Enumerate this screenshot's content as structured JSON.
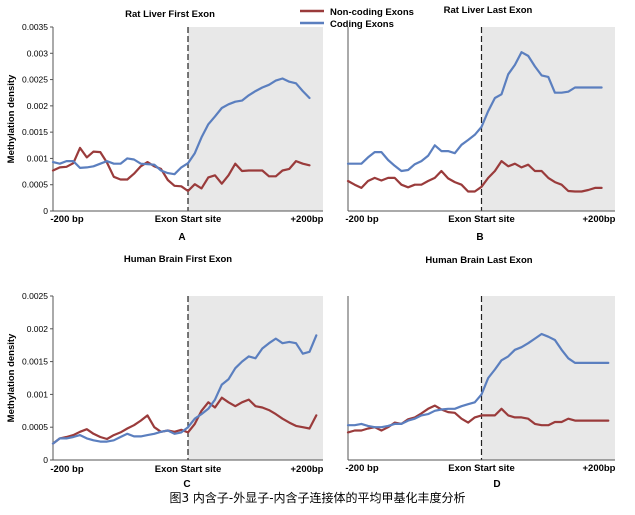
{
  "caption": "图3 内含子-外显子-内含子连接体的平均甲基化丰度分析",
  "legend": [
    {
      "label": "Non-coding Exons",
      "color": "#9a3b3b"
    },
    {
      "label": "Coding Exons",
      "color": "#5b7fbf"
    }
  ],
  "chart_data": [
    {
      "type": "line",
      "panel": "A",
      "title": "Rat Liver First Exon",
      "ylabel": "Methylation density",
      "xlabel": "",
      "x_tick_labels": [
        "-200 bp",
        "Exon Start site",
        "+200bp"
      ],
      "xlim": [
        -200,
        200
      ],
      "ylim": [
        0,
        0.0035
      ],
      "y_ticks": [
        "0",
        "0.0005",
        "0.001",
        "0.0015",
        "0.002",
        "0.0025",
        "0.003",
        "0.0035"
      ],
      "shaded_region": [
        0,
        200
      ],
      "vline_x": 0,
      "series": [
        {
          "name": "Non-coding Exons",
          "color": "#9a3b3b",
          "x": [
            -200,
            -190,
            -180,
            -170,
            -160,
            -150,
            -140,
            -130,
            -120,
            -110,
            -100,
            -90,
            -80,
            -70,
            -60,
            -50,
            -40,
            -30,
            -20,
            -10,
            0,
            10,
            20,
            30,
            40,
            50,
            60,
            70,
            80,
            90,
            100,
            110,
            120,
            130,
            140,
            150,
            160,
            170,
            180
          ],
          "values": [
            0.00077,
            0.00083,
            0.00084,
            0.00091,
            0.0012,
            0.00102,
            0.00113,
            0.00112,
            0.00092,
            0.00065,
            0.0006,
            0.0006,
            0.00071,
            0.00085,
            0.00093,
            0.00085,
            0.0008,
            0.00059,
            0.00048,
            0.00047,
            0.00038,
            0.00051,
            0.00043,
            0.00064,
            0.00068,
            0.00052,
            0.00068,
            0.0009,
            0.00076,
            0.00077,
            0.00077,
            0.00077,
            0.00066,
            0.00066,
            0.00077,
            0.0008,
            0.00095,
            0.0009,
            0.00087
          ]
        },
        {
          "name": "Coding Exons",
          "color": "#5b7fbf",
          "x": [
            -200,
            -190,
            -180,
            -170,
            -160,
            -150,
            -140,
            -130,
            -120,
            -110,
            -100,
            -90,
            -80,
            -70,
            -60,
            -50,
            -40,
            -30,
            -20,
            -10,
            0,
            10,
            20,
            30,
            40,
            50,
            60,
            70,
            80,
            90,
            100,
            110,
            120,
            130,
            140,
            150,
            160,
            170,
            180
          ],
          "values": [
            0.00093,
            0.0009,
            0.00095,
            0.00095,
            0.00082,
            0.00083,
            0.00085,
            0.0009,
            0.00095,
            0.0009,
            0.0009,
            0.001,
            0.00098,
            0.0009,
            0.00089,
            0.00088,
            0.00077,
            0.00072,
            0.0007,
            0.00083,
            0.00091,
            0.0011,
            0.0014,
            0.00165,
            0.0018,
            0.00196,
            0.00203,
            0.00208,
            0.0021,
            0.0022,
            0.00228,
            0.00235,
            0.0024,
            0.00248,
            0.00252,
            0.00246,
            0.00243,
            0.00228,
            0.00215
          ]
        }
      ]
    },
    {
      "type": "line",
      "panel": "B",
      "title": "Rat Liver Last Exon",
      "ylabel": "",
      "xlabel": "",
      "x_tick_labels": [
        "-200 bp",
        "Exon Start site",
        "+200bp"
      ],
      "xlim": [
        -200,
        200
      ],
      "ylim": [
        0,
        0.0035
      ],
      "shaded_region": [
        0,
        200
      ],
      "vline_x": 0,
      "series": [
        {
          "name": "Non-coding Exons",
          "color": "#9a3b3b",
          "x": [
            -200,
            -190,
            -180,
            -170,
            -160,
            -150,
            -140,
            -130,
            -120,
            -110,
            -100,
            -90,
            -80,
            -70,
            -60,
            -50,
            -40,
            -30,
            -20,
            -10,
            0,
            10,
            20,
            30,
            40,
            50,
            60,
            70,
            80,
            90,
            100,
            110,
            120,
            130,
            140,
            150,
            160,
            170,
            180
          ],
          "values": [
            0.00057,
            0.0005,
            0.00044,
            0.00057,
            0.00063,
            0.00058,
            0.00063,
            0.00063,
            0.0005,
            0.00045,
            0.0005,
            0.0005,
            0.00057,
            0.00063,
            0.00076,
            0.00062,
            0.00055,
            0.0005,
            0.00037,
            0.00037,
            0.00046,
            0.00063,
            0.00076,
            0.00095,
            0.00085,
            0.0009,
            0.00083,
            0.00088,
            0.00076,
            0.00076,
            0.00063,
            0.00055,
            0.0005,
            0.00038,
            0.00037,
            0.00037,
            0.0004,
            0.00044,
            0.00044
          ]
        },
        {
          "name": "Coding Exons",
          "color": "#5b7fbf",
          "x": [
            -200,
            -190,
            -180,
            -170,
            -160,
            -150,
            -140,
            -130,
            -120,
            -110,
            -100,
            -90,
            -80,
            -70,
            -60,
            -50,
            -40,
            -30,
            -20,
            -10,
            0,
            10,
            20,
            30,
            40,
            50,
            60,
            70,
            80,
            90,
            100,
            110,
            120,
            130,
            140,
            150,
            160,
            170,
            180
          ],
          "values": [
            0.0009,
            0.0009,
            0.0009,
            0.00102,
            0.00112,
            0.00112,
            0.00097,
            0.00086,
            0.00076,
            0.00078,
            0.00089,
            0.00095,
            0.00105,
            0.00125,
            0.00114,
            0.00114,
            0.0011,
            0.00126,
            0.00135,
            0.00145,
            0.0016,
            0.0019,
            0.00215,
            0.00222,
            0.0026,
            0.00278,
            0.00302,
            0.00295,
            0.00275,
            0.00258,
            0.00255,
            0.00225,
            0.00225,
            0.00227,
            0.00235,
            0.00235,
            0.00235,
            0.00235,
            0.00235
          ]
        }
      ]
    },
    {
      "type": "line",
      "panel": "C",
      "title": "Human Brain First Exon",
      "ylabel": "Methylation density",
      "xlabel": "",
      "x_tick_labels": [
        "-200 bp",
        "Exon Start site",
        "+200bp"
      ],
      "xlim": [
        -200,
        200
      ],
      "ylim": [
        0,
        0.0025
      ],
      "y_ticks": [
        "0",
        "0.0005",
        "0.001",
        "0.0015",
        "0.002",
        "0.0025"
      ],
      "shaded_region": [
        0,
        200
      ],
      "vline_x": 0,
      "series": [
        {
          "name": "Non-coding Exons",
          "color": "#9a3b3b",
          "x": [
            -200,
            -190,
            -180,
            -170,
            -160,
            -150,
            -140,
            -130,
            -120,
            -110,
            -100,
            -90,
            -80,
            -70,
            -60,
            -50,
            -40,
            -30,
            -20,
            -10,
            0,
            10,
            20,
            30,
            40,
            50,
            60,
            70,
            80,
            90,
            100,
            110,
            120,
            130,
            140,
            150,
            160,
            170,
            180,
            190
          ],
          "values": [
            0.00025,
            0.00033,
            0.00035,
            0.00038,
            0.00043,
            0.00047,
            0.0004,
            0.00035,
            0.00032,
            0.00038,
            0.00042,
            0.00048,
            0.00053,
            0.0006,
            0.00068,
            0.0005,
            0.00043,
            0.00045,
            0.00043,
            0.00046,
            0.00042,
            0.00055,
            0.00075,
            0.00088,
            0.0008,
            0.00095,
            0.00088,
            0.00082,
            0.00088,
            0.00092,
            0.00082,
            0.0008,
            0.00076,
            0.0007,
            0.00063,
            0.00057,
            0.00052,
            0.0005,
            0.00048,
            0.00068
          ]
        },
        {
          "name": "Coding Exons",
          "color": "#5b7fbf",
          "x": [
            -200,
            -190,
            -180,
            -170,
            -160,
            -150,
            -140,
            -130,
            -120,
            -110,
            -100,
            -90,
            -80,
            -70,
            -60,
            -50,
            -40,
            -30,
            -20,
            -10,
            0,
            10,
            20,
            30,
            40,
            50,
            60,
            70,
            80,
            90,
            100,
            110,
            120,
            130,
            140,
            150,
            160,
            170,
            180,
            190
          ],
          "values": [
            0.00025,
            0.00033,
            0.00033,
            0.00035,
            0.00038,
            0.00033,
            0.0003,
            0.00028,
            0.00028,
            0.0003,
            0.00035,
            0.0004,
            0.00036,
            0.00036,
            0.00038,
            0.0004,
            0.00043,
            0.00045,
            0.0004,
            0.00042,
            0.0005,
            0.00063,
            0.0007,
            0.00078,
            0.00092,
            0.00115,
            0.00123,
            0.0014,
            0.0015,
            0.00158,
            0.00155,
            0.0017,
            0.00178,
            0.00185,
            0.00178,
            0.0018,
            0.00178,
            0.00162,
            0.00165,
            0.0019
          ]
        }
      ]
    },
    {
      "type": "line",
      "panel": "D",
      "title": "Human Brain Last Exon",
      "ylabel": "",
      "xlabel": "",
      "x_tick_labels": [
        "-200 bp",
        "Exon Start site",
        "+200bp"
      ],
      "xlim": [
        -200,
        200
      ],
      "ylim": [
        0,
        0.0025
      ],
      "shaded_region": [
        0,
        200
      ],
      "vline_x": 0,
      "series": [
        {
          "name": "Non-coding Exons",
          "color": "#9a3b3b",
          "x": [
            -200,
            -190,
            -180,
            -170,
            -160,
            -150,
            -140,
            -130,
            -120,
            -110,
            -100,
            -90,
            -80,
            -70,
            -60,
            -50,
            -40,
            -30,
            -20,
            -10,
            0,
            10,
            20,
            30,
            40,
            50,
            60,
            70,
            80,
            90,
            100,
            110,
            120,
            130,
            140,
            150,
            160,
            170,
            180,
            190
          ],
          "values": [
            0.00042,
            0.00045,
            0.00045,
            0.00048,
            0.0005,
            0.00045,
            0.0005,
            0.00057,
            0.00055,
            0.00062,
            0.00065,
            0.00071,
            0.00078,
            0.00083,
            0.00077,
            0.00073,
            0.00072,
            0.00063,
            0.00057,
            0.00065,
            0.00068,
            0.00068,
            0.00068,
            0.00078,
            0.00068,
            0.00065,
            0.00065,
            0.00063,
            0.00055,
            0.00053,
            0.00053,
            0.00058,
            0.00058,
            0.00063,
            0.0006,
            0.0006,
            0.0006,
            0.0006,
            0.0006,
            0.0006
          ]
        },
        {
          "name": "Coding Exons",
          "color": "#5b7fbf",
          "x": [
            -200,
            -190,
            -180,
            -170,
            -160,
            -150,
            -140,
            -130,
            -120,
            -110,
            -100,
            -90,
            -80,
            -70,
            -60,
            -50,
            -40,
            -30,
            -20,
            -10,
            0,
            10,
            20,
            30,
            40,
            50,
            60,
            70,
            80,
            90,
            100,
            110,
            120,
            130,
            140,
            150,
            160,
            170,
            180,
            190
          ],
          "values": [
            0.00053,
            0.00053,
            0.00055,
            0.00052,
            0.0005,
            0.0005,
            0.00052,
            0.00055,
            0.00055,
            0.0006,
            0.00063,
            0.00068,
            0.0007,
            0.00075,
            0.00077,
            0.00078,
            0.00078,
            0.00082,
            0.00085,
            0.00088,
            0.001,
            0.00125,
            0.00138,
            0.00152,
            0.00158,
            0.00168,
            0.00172,
            0.00178,
            0.00185,
            0.00192,
            0.00188,
            0.00183,
            0.00168,
            0.00155,
            0.00148,
            0.00148,
            0.00148,
            0.00148,
            0.00148,
            0.00148
          ]
        }
      ]
    }
  ]
}
